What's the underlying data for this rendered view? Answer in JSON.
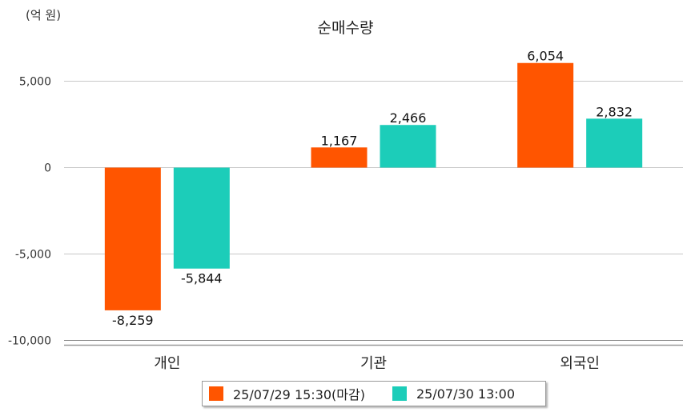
{
  "chart_data": {
    "type": "bar",
    "title": "순매수량",
    "unit_label": "(억 원)",
    "categories": [
      "개인",
      "기관",
      "외국인"
    ],
    "series": [
      {
        "name": "25/07/29 15:30(마감)",
        "color": "#ff5500",
        "values": [
          -8259,
          1167,
          6054
        ]
      },
      {
        "name": "25/07/30 13:00",
        "color": "#1ccdb9",
        "values": [
          -5844,
          2466,
          2832
        ]
      }
    ],
    "y_ticks": [
      5000,
      0,
      -5000,
      -10000
    ],
    "y_tick_labels": [
      "5,000",
      "0",
      "-5,000",
      "-10,000"
    ],
    "value_labels": [
      [
        "-8,259",
        "1,167",
        "6,054"
      ],
      [
        "-5,844",
        "2,466",
        "2,832"
      ]
    ],
    "ylim": [
      -10000,
      5000
    ],
    "grid": true,
    "legend_position": "bottom"
  }
}
